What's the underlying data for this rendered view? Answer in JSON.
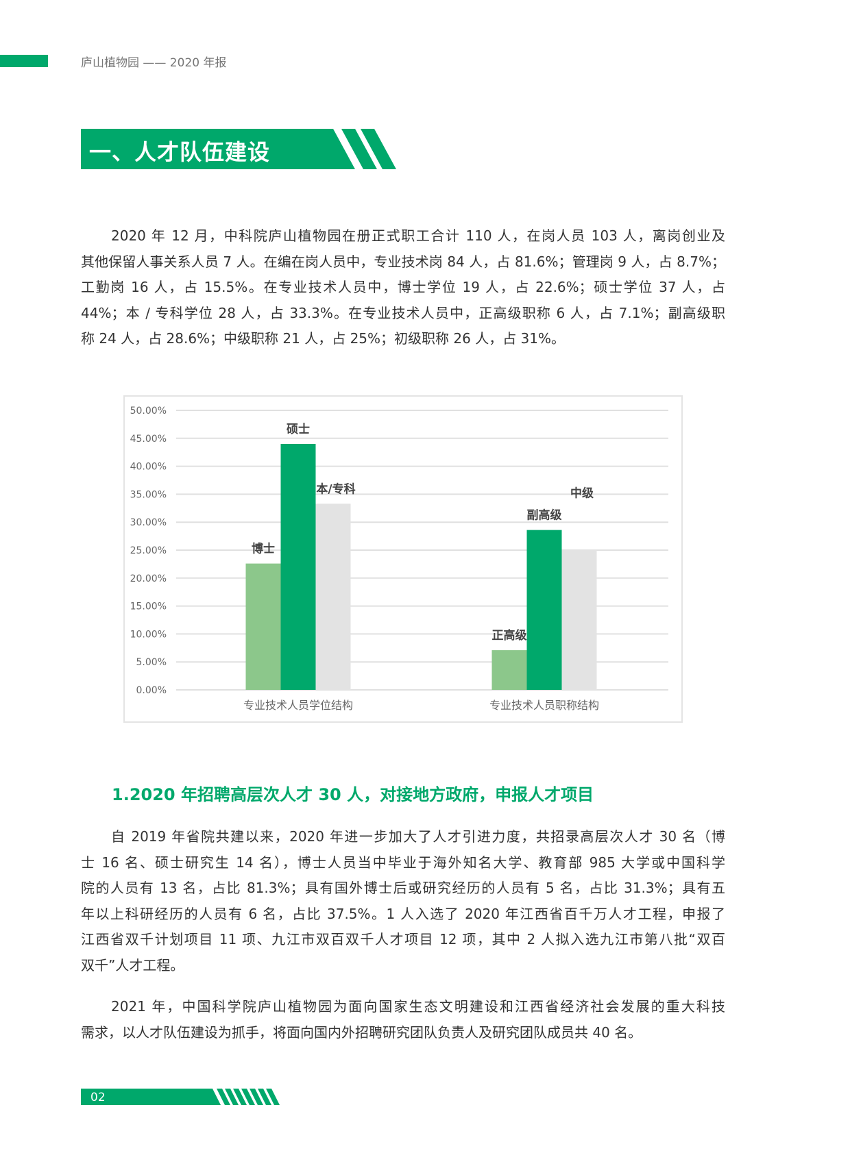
{
  "header": {
    "running_title": "庐山植物园 —— 2020 年报"
  },
  "section": {
    "title": "一、人才队伍建设"
  },
  "paragraph1": [
    "2020 年 12 月，中科院庐山植物园在册正式职工合计 110 人，在岗人员 103 人，离岗创业及",
    "其他保留人事关系人员 7 人。在编在岗人员中，专业技术岗 84 人，占 81.6%；管理岗 9 人，占 8.7%；",
    "工勤岗 16 人，占 15.5%。在专业技术人员中，博士学位 19 人，占 22.6%；硕士学位 37 人，占",
    "44%；本 / 专科学位 28 人，占 33.3%。在专业技术人员中，正高级职称 6 人，占 7.1%；副高级职",
    "称 24 人，占 28.6%；中级职称 21 人，占 25%；初级职称 26 人，占 31%。"
  ],
  "chart_data": {
    "type": "bar",
    "categories": [
      "专业技术人员学位结构",
      "专业技术人员职称结构"
    ],
    "groups": [
      {
        "category": "专业技术人员学位结构",
        "bars": [
          {
            "label": "博士",
            "value": 22.6
          },
          {
            "label": "硕士",
            "value": 44.0
          },
          {
            "label": "本/专科",
            "value": 33.3
          }
        ]
      },
      {
        "category": "专业技术人员职称结构",
        "bars": [
          {
            "label": "正高级",
            "value": 7.1
          },
          {
            "label": "副高级",
            "value": 28.6
          },
          {
            "label": "中级",
            "value": 25.0
          }
        ]
      }
    ],
    "bar_colors": [
      "#8cc78b",
      "#00a86b",
      "#e3e3e3"
    ],
    "yticks": [
      "0.00%",
      "5.00%",
      "10.00%",
      "15.00%",
      "20.00%",
      "25.00%",
      "30.00%",
      "35.00%",
      "40.00%",
      "45.00%",
      "50.00%"
    ],
    "ylim": [
      0,
      50
    ],
    "grid": true,
    "title": "",
    "xlabel": "",
    "ylabel": ""
  },
  "subheading": "1.2020 年招聘高层次人才 30 人，对接地方政府，申报人才项目",
  "paragraph2": [
    "自 2019 年省院共建以来，2020 年进一步加大了人才引进力度，共招录高层次人才 30 名（博",
    "士 16 名、硕士研究生 14 名），博士人员当中毕业于海外知名大学、教育部 985 大学或中国科学",
    "院的人员有 13 名，占比 81.3%；具有国外博士后或研究经历的人员有 5 名，占比 31.3%；具有五",
    "年以上科研经历的人员有 6 名，占比 37.5%。1 人入选了 2020 年江西省百千万人才工程，申报了",
    "江西省双千计划项目 11 项、九江市双百双千人才项目 12 项，其中 2 人拟入选九江市第八批“双百",
    "双千”人才工程。"
  ],
  "paragraph3": [
    "2021 年，中国科学院庐山植物园为面向国家生态文明建设和江西省经济社会发展的重大科技",
    "需求，以人才队伍建设为抓手，将面向国内外招聘研究团队负责人及研究团队成员共 40 名。"
  ],
  "footer": {
    "page_number": "02"
  },
  "colors": {
    "accent": "#00a86b"
  }
}
